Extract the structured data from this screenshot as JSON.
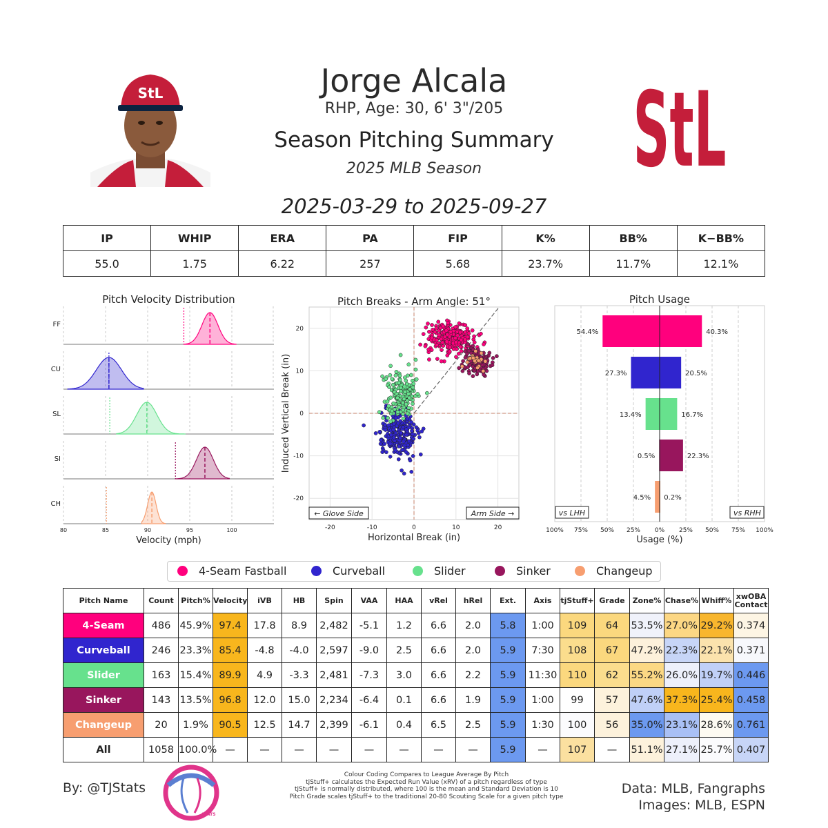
{
  "header": {
    "name": "Jorge Alcala",
    "info": "RHP, Age: 30, 6' 3\"/205",
    "title": "Season Pitching Summary",
    "season": "2025 MLB Season",
    "dates": "2025-03-29 to 2025-09-27",
    "team_logo_text": "StL",
    "team_color": "#c41e3a"
  },
  "summary": {
    "headers": [
      "IP",
      "WHIP",
      "ERA",
      "PA",
      "FIP",
      "K%",
      "BB%",
      "K−BB%"
    ],
    "values": [
      "55.0",
      "1.75",
      "6.22",
      "257",
      "5.68",
      "23.7%",
      "11.7%",
      "12.1%"
    ]
  },
  "pitch_colors": {
    "4-Seam Fastball": "#ff007d",
    "Curveball": "#3025ce",
    "Slider": "#67e18d",
    "Sinker": "#98165d",
    "Changeup": "#f79e70"
  },
  "legend": [
    "4-Seam Fastball",
    "Curveball",
    "Slider",
    "Sinker",
    "Changeup"
  ],
  "chart_data": [
    {
      "type": "area",
      "title": "Pitch Velocity Distribution",
      "xlabel": "Velocity (mph)",
      "xlim": [
        80,
        105
      ],
      "xticks": [
        80,
        85,
        90,
        95,
        100
      ],
      "series": [
        {
          "name": "FF",
          "color": "#ff007d",
          "min": 94.3,
          "max": 100.5,
          "mean": 97.4,
          "sd": 0.95,
          "lhh_mean": 94.3
        },
        {
          "name": "CU",
          "color": "#3025ce",
          "min": 80.5,
          "max": 89.5,
          "mean": 85.4,
          "sd": 1.5,
          "lhh_mean": 85.4
        },
        {
          "name": "SL",
          "color": "#67e18d",
          "min": 86.3,
          "max": 94.5,
          "mean": 89.9,
          "sd": 1.2,
          "lhh_mean": 85.5
        },
        {
          "name": "SI",
          "color": "#98165d",
          "min": 93.3,
          "max": 99.7,
          "mean": 96.8,
          "sd": 1.0,
          "lhh_mean": 93.3
        },
        {
          "name": "CH",
          "color": "#f79e70",
          "min": 89.3,
          "max": 92.1,
          "mean": 90.5,
          "sd": 0.5,
          "lhh_mean": 85.1
        }
      ]
    },
    {
      "type": "scatter",
      "title": "Pitch Breaks - Arm Angle: 51°",
      "xlabel": "Horizontal Break (in)",
      "ylabel": "Induced Vertical Break (in)",
      "xlim": [
        -25,
        25
      ],
      "ylim": [
        -25,
        25
      ],
      "xticks": [
        -20,
        -10,
        0,
        10,
        20
      ],
      "yticks": [
        -20,
        -10,
        0,
        10,
        20
      ],
      "annotations": [
        "← Glove Side",
        "Arm Side →"
      ],
      "series": [
        {
          "name": "4-Seam Fastball",
          "color": "#ff007d",
          "count": 486,
          "hb": 8.9,
          "ivb": 17.8,
          "sx": 2.8,
          "sy": 1.8
        },
        {
          "name": "Curveball",
          "color": "#3025ce",
          "count": 246,
          "hb": -4.0,
          "ivb": -4.8,
          "sx": 2.3,
          "sy": 2.8
        },
        {
          "name": "Slider",
          "color": "#67e18d",
          "count": 163,
          "hb": -3.3,
          "ivb": 4.9,
          "sx": 2.0,
          "sy": 3.0
        },
        {
          "name": "Sinker",
          "color": "#98165d",
          "count": 143,
          "hb": 15.0,
          "ivb": 12.0,
          "sx": 1.6,
          "sy": 1.7
        },
        {
          "name": "Changeup",
          "color": "#f79e70",
          "count": 20,
          "hb": 14.7,
          "ivb": 12.5,
          "sx": 1.2,
          "sy": 1.3
        }
      ]
    },
    {
      "type": "bar",
      "title": "Pitch Usage",
      "xlabel": "Usage (%)",
      "xticks": [
        "100%",
        "75%",
        "50%",
        "25%",
        "0%",
        "25%",
        "50%",
        "75%",
        "100%"
      ],
      "side_labels": [
        "vs LHH",
        "vs RHH"
      ],
      "categories": [
        "4-Seam Fastball",
        "Curveball",
        "Slider",
        "Sinker",
        "Changeup"
      ],
      "series": [
        {
          "name": "vs LHH",
          "values": [
            54.4,
            27.3,
            13.4,
            0.5,
            4.5
          ]
        },
        {
          "name": "vs RHH",
          "values": [
            40.3,
            20.5,
            16.7,
            22.3,
            0.2
          ]
        }
      ],
      "value_labels_lhh": [
        "54.4%",
        "27.3%",
        "13.4%",
        "0.5%",
        "4.5%"
      ],
      "value_labels_rhh": [
        "40.3%",
        "20.5%",
        "16.7%",
        "22.3%",
        "0.2%"
      ]
    },
    {
      "type": "table",
      "columns": [
        "Pitch Name",
        "Count",
        "Pitch%",
        "Velocity",
        "iVB",
        "HB",
        "Spin",
        "VAA",
        "HAA",
        "vRel",
        "hRel",
        "Ext.",
        "Axis",
        "tjStuff+",
        "Grade",
        "Zone%",
        "Chase%",
        "Whiff%",
        "xwOBA Contact"
      ],
      "rows": [
        {
          "name": "4-Seam",
          "color": "#ff007d",
          "cells": [
            "486",
            "45.9%",
            "97.4",
            "17.8",
            "8.9",
            "2,482",
            "-5.1",
            "1.2",
            "6.6",
            "2.0",
            "5.8",
            "1:00",
            "109",
            "64",
            "53.5%",
            "27.0%",
            "29.2%",
            "0.374"
          ],
          "shades": [
            "",
            "",
            "#f8b61d",
            "",
            "",
            "",
            "",
            "",
            "",
            "",
            "#6c99f0",
            "",
            "#fbd87e",
            "#fbd87e",
            "#f0f2fb",
            "#fcd784",
            "#f8b62e",
            "#fdf5e4"
          ]
        },
        {
          "name": "Curveball",
          "color": "#3025ce",
          "cells": [
            "246",
            "23.3%",
            "85.4",
            "-4.8",
            "-4.0",
            "2,597",
            "-9.0",
            "2.5",
            "6.6",
            "2.0",
            "5.9",
            "7:30",
            "108",
            "67",
            "47.2%",
            "22.3%",
            "22.1%",
            "0.371"
          ],
          "shades": [
            "",
            "",
            "#f8b61d",
            "",
            "",
            "",
            "",
            "",
            "",
            "",
            "#6c99f0",
            "",
            "#fbdd8d",
            "#fbd87e",
            "#fdf1db",
            "#c7d5f7",
            "#fbe3ad",
            "#f7f8fc"
          ]
        },
        {
          "name": "Slider",
          "color": "#67e18d",
          "cells": [
            "163",
            "15.4%",
            "89.9",
            "4.9",
            "-3.3",
            "2,481",
            "-7.3",
            "3.0",
            "6.6",
            "2.2",
            "5.9",
            "11:30",
            "110",
            "62",
            "55.2%",
            "26.0%",
            "19.7%",
            "0.446"
          ],
          "shades": [
            "",
            "",
            "#f8b61d",
            "",
            "",
            "",
            "",
            "",
            "",
            "",
            "#6c99f0",
            "",
            "#fbd87e",
            "#fbdd8d",
            "#fbd884",
            "#edf0fb",
            "#c0d0f7",
            "#6c99f0"
          ]
        },
        {
          "name": "Sinker",
          "color": "#98165d",
          "cells": [
            "143",
            "13.5%",
            "96.8",
            "12.0",
            "15.0",
            "2,234",
            "-6.4",
            "0.1",
            "6.6",
            "1.9",
            "5.9",
            "1:00",
            "99",
            "57",
            "47.6%",
            "37.3%",
            "25.4%",
            "0.458"
          ],
          "shades": [
            "",
            "",
            "#f8b61d",
            "",
            "",
            "",
            "",
            "",
            "",
            "",
            "#6c99f0",
            "",
            "",
            "#fdf2dc",
            "#c0d0f7",
            "#f8b61d",
            "#f8b61d",
            "#6c99f0"
          ]
        },
        {
          "name": "Changeup",
          "color": "#f79e70",
          "cells": [
            "20",
            "1.9%",
            "90.5",
            "12.5",
            "14.7",
            "2,399",
            "-6.1",
            "0.4",
            "6.5",
            "2.5",
            "5.9",
            "1:30",
            "100",
            "56",
            "35.0%",
            "23.1%",
            "28.6%",
            "0.761"
          ],
          "shades": [
            "",
            "",
            "#f8b61d",
            "",
            "",
            "",
            "",
            "",
            "",
            "",
            "#6c99f0",
            "",
            "#fbfbfd",
            "#fdf2dc",
            "#6c99f0",
            "#a9c0f5",
            "#fdfaf2",
            "#6c99f0"
          ]
        },
        {
          "name": "All",
          "color": "#ffffff",
          "cells": [
            "1058",
            "100.0%",
            "—",
            "—",
            "—",
            "—",
            "—",
            "—",
            "—",
            "—",
            "5.9",
            "—",
            "107",
            "—",
            "51.1%",
            "27.1%",
            "25.7%",
            "0.407"
          ],
          "shades": [
            "",
            "",
            "",
            "",
            "",
            "",
            "",
            "",
            "",
            "",
            "#6c99f0",
            "",
            "#fbe0a0",
            "",
            "#fdf2dc",
            "#edf0fb",
            "#fbfbfd",
            "#c7d5f7"
          ]
        }
      ]
    }
  ],
  "footer": {
    "by": "By: @TJStats",
    "notes": [
      "Colour Coding Compares to League Average By Pitch",
      "tjStuff+ calculates the Expected Run Value (xRV) of a pitch regardless of type",
      "tjStuff+ is normally distributed, where 100 is the mean and Standard Deviation is 10",
      "Pitch Grade scales tjStuff+ to the traditional 20-80 Scouting Scale for a given pitch type"
    ],
    "data_line1": "Data: MLB, Fangraphs",
    "data_line2": "Images: MLB, ESPN",
    "tj_logo_text": "STATS"
  }
}
